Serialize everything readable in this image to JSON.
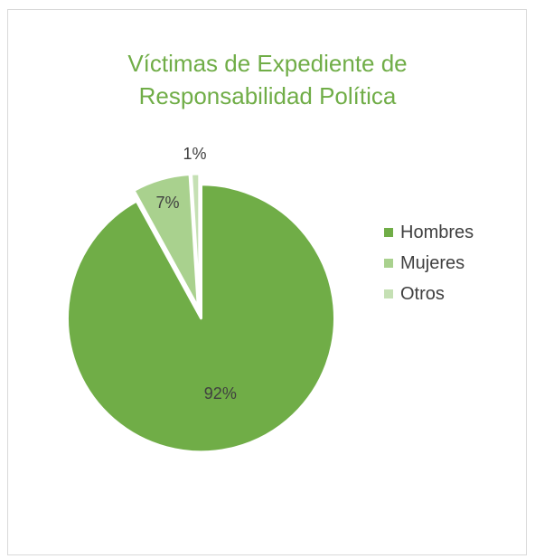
{
  "chart_data": {
    "type": "pie",
    "title": "Víctimas de Expediente de Responsabilidad Política",
    "title_lines": [
      "Víctimas de Expediente de",
      "Responsabilidad Política"
    ],
    "categories": [
      "Hombres",
      "Mujeres",
      "Otros"
    ],
    "values": [
      92,
      7,
      1
    ],
    "data_labels": [
      "92%",
      "7%",
      "1%"
    ],
    "colors": [
      "#70ad47",
      "#a9d18e",
      "#c5e0b4"
    ],
    "title_color": "#70ad47",
    "legend_position": "right"
  }
}
